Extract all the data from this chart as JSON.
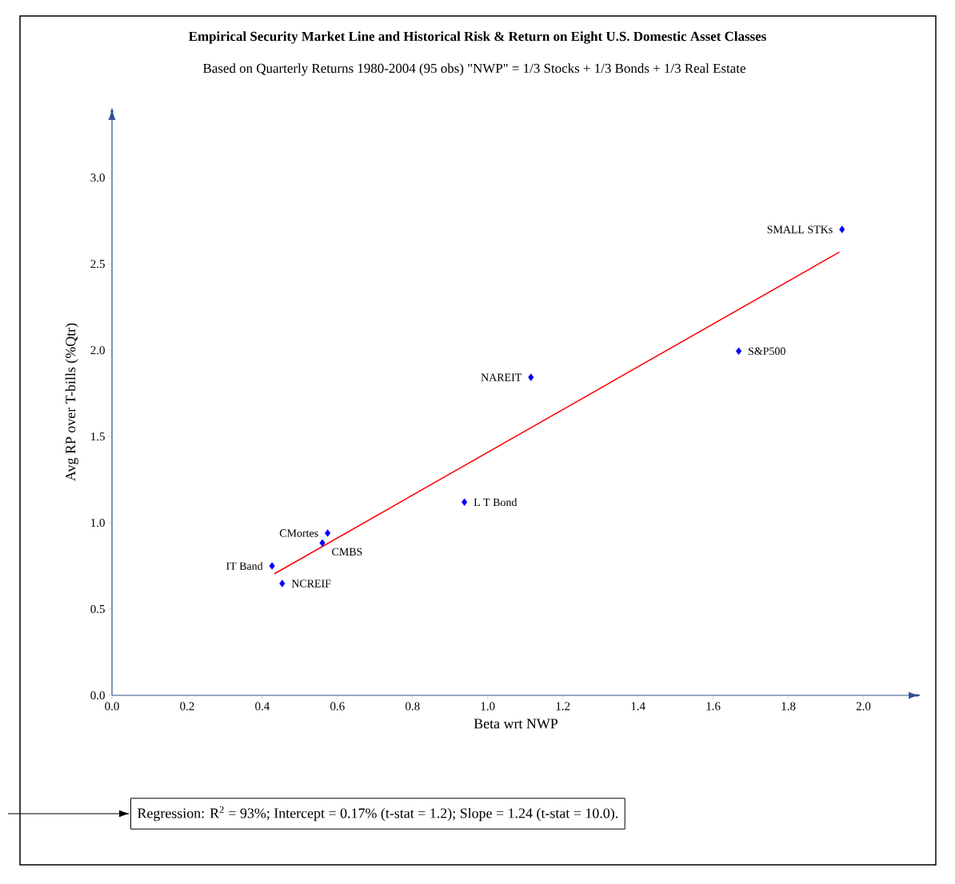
{
  "chart_data": {
    "type": "scatter",
    "title": "Empirical Security Market Line and Historical Risk & Return on Eight U.S. Domestic Asset Classes",
    "subtitle": "Based on Quarterly Returns 1980-2004 (95 obs) \"NWP\" = 1/3 Stocks + 1/3 Bonds + 1/3 Real Estate",
    "xlabel": "Beta wrt NWP",
    "ylabel": "Avg RP over T-bills (%Qtr)",
    "xlim": [
      0,
      2.15
    ],
    "ylim": [
      0,
      3.4
    ],
    "xticks": [
      {
        "value": 0,
        "label": "0.0"
      },
      {
        "value": 0.2,
        "label": "0.2"
      },
      {
        "value": 0.4,
        "label": "0.4"
      },
      {
        "value": 0.6,
        "label": "0.6"
      },
      {
        "value": 0.8,
        "label": "0.8"
      },
      {
        "value": 1,
        "label": "1.0"
      },
      {
        "value": 1.2,
        "label": "1.2"
      },
      {
        "value": 1.4,
        "label": "1.4"
      },
      {
        "value": 1.6,
        "label": "1.6"
      },
      {
        "value": 1.8,
        "label": "1.8"
      },
      {
        "value": 2,
        "label": "2.0"
      }
    ],
    "yticks": [
      {
        "value": 0,
        "label": "0.0"
      },
      {
        "value": 0.5,
        "label": "0.5"
      },
      {
        "value": 1,
        "label": "1.0"
      },
      {
        "value": 1.5,
        "label": "1.5"
      },
      {
        "value": 2,
        "label": "2.0"
      },
      {
        "value": 2.5,
        "label": "2.5"
      },
      {
        "value": 3,
        "label": "3.0"
      }
    ],
    "marker": "diamond",
    "series": [
      {
        "type": "scatter",
        "color": "#0000ff",
        "x": [
          1.943,
          1.668,
          1.115,
          0.938,
          0.574,
          0.56,
          0.426,
          0.453
        ],
        "values": [
          2.7,
          1.995,
          1.843,
          1.12,
          0.94,
          0.884,
          0.75,
          0.648
        ]
      },
      {
        "type": "line",
        "marker": "none",
        "color": "#ff0000",
        "x": [
          0.432,
          1.936
        ],
        "values": [
          0.704,
          2.569
        ]
      }
    ],
    "annotations": [
      {
        "text": "SMALL STKs",
        "x": 1.943,
        "y": 2.7
      },
      {
        "text": "S&P500",
        "x": 1.668,
        "y": 1.995
      },
      {
        "text": "NAREIT",
        "x": 1.115,
        "y": 1.843
      },
      {
        "text": "L T Bond",
        "x": 0.938,
        "y": 1.12
      },
      {
        "text": "CMortes",
        "x": 0.574,
        "y": 0.94
      },
      {
        "text": "CMBS",
        "x": 0.56,
        "y": 0.884
      },
      {
        "text": "IT Band",
        "x": 0.426,
        "y": 0.75
      },
      {
        "text": "NCREIF",
        "x": 0.453,
        "y": 0.648
      },
      "Regression: R$^{2}$ = 93%; Intercept = 0.17% (t-stat = 1.2); Slope = 1.24 (t-stat = 10.0)."
    ]
  }
}
